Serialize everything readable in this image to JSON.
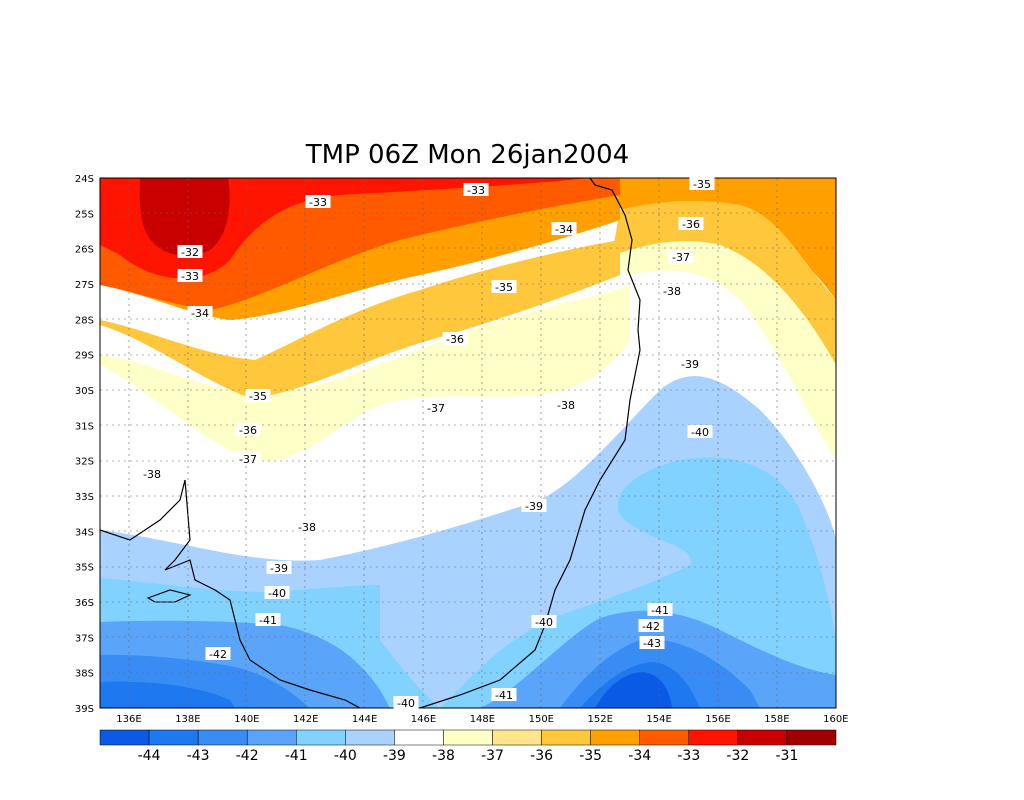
{
  "title": "TMP 06Z Mon 26jan2004",
  "x_ticks": [
    "136E",
    "138E",
    "140E",
    "142E",
    "144E",
    "146E",
    "148E",
    "150E",
    "152E",
    "154E",
    "156E",
    "158E",
    "160E"
  ],
  "y_ticks": [
    "24S",
    "25S",
    "26S",
    "27S",
    "28S",
    "29S",
    "30S",
    "31S",
    "32S",
    "33S",
    "34S",
    "35S",
    "36S",
    "37S",
    "38S",
    "39S"
  ],
  "contour_labels": [
    "-33",
    "-33",
    "-35",
    "-34",
    "-36",
    "-32",
    "-33",
    "-37",
    "-34",
    "-35",
    "-38",
    "-36",
    "-39",
    "-35",
    "-37",
    "-38",
    "-36",
    "-40",
    "-37",
    "-38",
    "-38",
    "-39",
    "-39",
    "-40",
    "-41",
    "-41",
    "-40",
    "-42",
    "-42",
    "-43",
    "-40",
    "-41"
  ],
  "legend": {
    "labels": [
      "-44",
      "-43",
      "-42",
      "-41",
      "-40",
      "-39",
      "-38",
      "-37",
      "-36",
      "-35",
      "-34",
      "-33",
      "-32",
      "-31"
    ],
    "colors": [
      "#0a5ae6",
      "#1e78f0",
      "#3a8cf5",
      "#5aa5fa",
      "#82d2ff",
      "#aad2ff",
      "#ffffff",
      "#ffffc8",
      "#ffe68c",
      "#ffc83c",
      "#ffa000",
      "#ff5a00",
      "#ff1400",
      "#c80000",
      "#a00000"
    ]
  },
  "chart_data": {
    "type": "heatmap",
    "title": "TMP 06Z Mon 26jan2004",
    "x_range": [
      135,
      160
    ],
    "y_range": [
      -24,
      -39
    ],
    "levels": [
      -44,
      -43,
      -42,
      -41,
      -40,
      -39,
      -38,
      -37,
      -36,
      -35,
      -34,
      -33,
      -32,
      -31
    ]
  }
}
